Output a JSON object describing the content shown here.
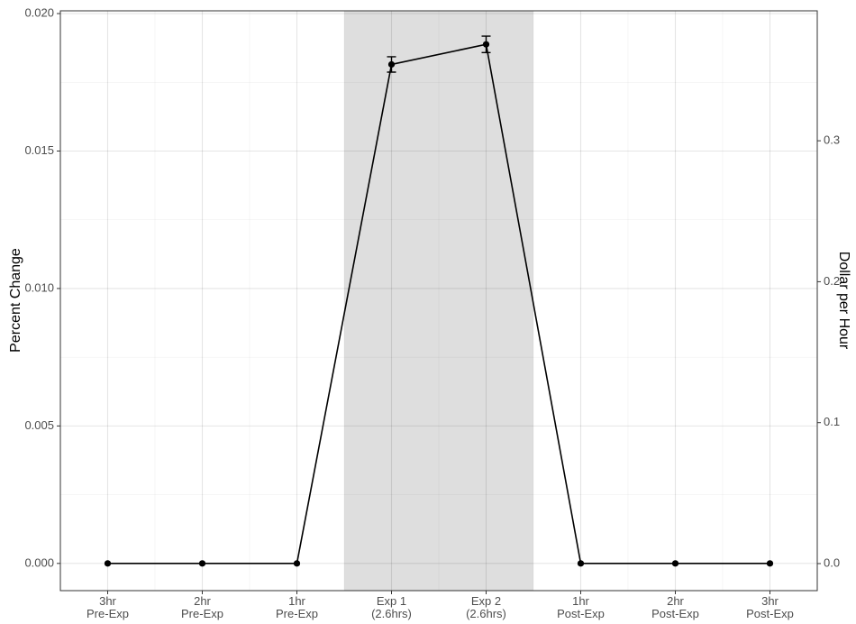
{
  "chart_data": {
    "type": "line",
    "categories": [
      "3hr\nPre-Exp",
      "2hr\nPre-Exp",
      "1hr\nPre-Exp",
      "Exp 1\n(2.6hrs)",
      "Exp 2\n(2.6hrs)",
      "1hr\nPost-Exp",
      "2hr\nPost-Exp",
      "3hr\nPost-Exp"
    ],
    "series": [
      {
        "color": "#000000",
        "values": [
          0,
          0,
          0,
          0.01815,
          0.01888,
          0,
          0,
          0
        ],
        "errors": [
          0,
          0,
          0,
          0.00028,
          0.0003,
          0,
          0,
          0
        ]
      }
    ],
    "y_label": "Percent Change",
    "y2_label": "Dollar per Hour",
    "ylim": [
      -0.00099,
      0.0201
    ],
    "yticks": [
      {
        "value": 0,
        "label": "0.000"
      },
      0.005,
      {
        "value": 0.01,
        "label": "0.010"
      },
      0.015,
      {
        "value": 0.02,
        "label": "0.020"
      }
    ],
    "y2lim": [
      -0.0192,
      0.3922
    ],
    "y2ticks": [
      {
        "value": 0,
        "label": "0.0"
      },
      0.1,
      0.2,
      0.3
    ],
    "shaded_categories": [
      3,
      4
    ],
    "shade_color": "#dcdcdc",
    "grid": true
  }
}
